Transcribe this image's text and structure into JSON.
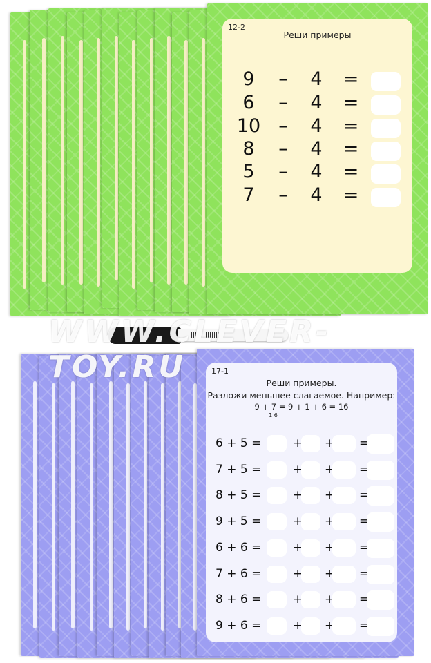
{
  "watermark": "WWW.CLEVER-TOY.RU",
  "green_card": {
    "code": "12-2",
    "title": "Реши примеры",
    "color": "#8fe35c",
    "rows": [
      {
        "a": "9",
        "op": "–",
        "b": "4",
        "eq": "="
      },
      {
        "a": "6",
        "op": "–",
        "b": "4",
        "eq": "="
      },
      {
        "a": "10",
        "op": "–",
        "b": "4",
        "eq": "="
      },
      {
        "a": "8",
        "op": "–",
        "b": "4",
        "eq": "="
      },
      {
        "a": "5",
        "op": "–",
        "b": "4",
        "eq": "="
      },
      {
        "a": "7",
        "op": "–",
        "b": "4",
        "eq": "="
      }
    ]
  },
  "purple_card": {
    "code": "17-1",
    "title": "Реши примеры.",
    "subtitle": "Разложи меньшее слагаемое. Например:",
    "example": "9 + 7 = 9 + 1 + 6 = 16",
    "example_split": "1 6",
    "color": "#9d9ef2",
    "rows": [
      {
        "expr": "6 + 5 =",
        "plus": "+",
        "eq": "="
      },
      {
        "expr": "7 + 5 =",
        "plus": "+",
        "eq": "="
      },
      {
        "expr": "8 + 5 =",
        "plus": "+",
        "eq": "="
      },
      {
        "expr": "9 + 5 =",
        "plus": "+",
        "eq": "="
      },
      {
        "expr": "6 + 6 =",
        "plus": "+",
        "eq": "="
      },
      {
        "expr": "7 + 6 =",
        "plus": "+",
        "eq": "="
      },
      {
        "expr": "8 + 6 =",
        "plus": "+",
        "eq": "="
      },
      {
        "expr": "9 + 6 =",
        "plus": "+",
        "eq": "="
      }
    ]
  }
}
